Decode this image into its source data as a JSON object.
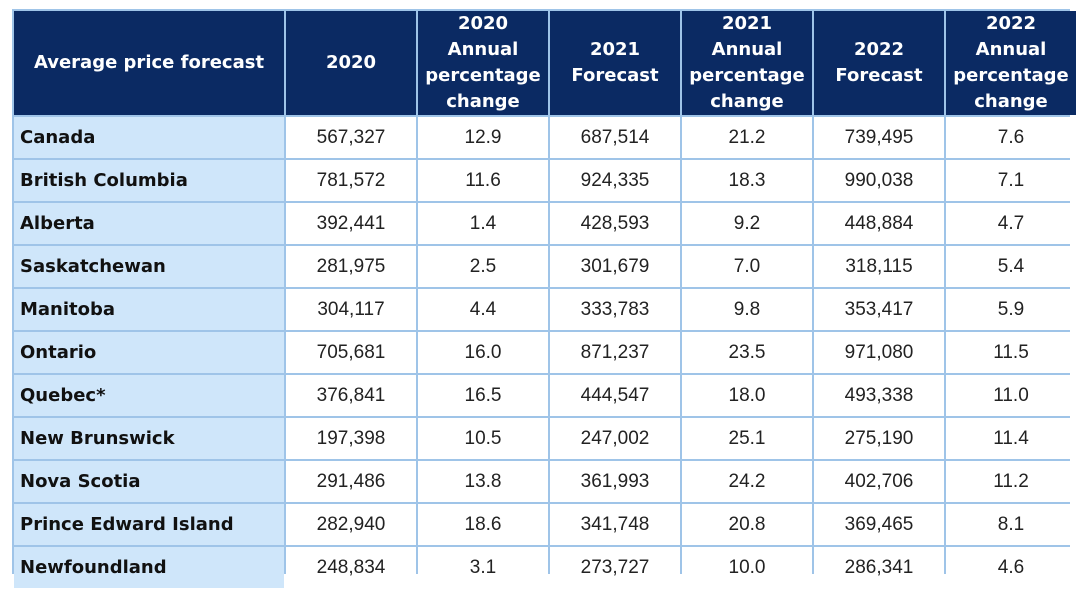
{
  "table": {
    "headers": [
      "Average price forecast",
      "2020",
      "2020 Annual\npercentage\nchange",
      "2021 Forecast",
      "2021 Annual\npercentage\nchange",
      "2022 Forecast",
      "2022 Annual\npercentage\nchange"
    ],
    "rows": [
      [
        "Canada",
        "567,327",
        "12.9",
        "687,514",
        "21.2",
        "739,495",
        "7.6"
      ],
      [
        "British Columbia",
        "781,572",
        "11.6",
        "924,335",
        "18.3",
        "990,038",
        "7.1"
      ],
      [
        "Alberta",
        "392,441",
        "1.4",
        "428,593",
        "9.2",
        "448,884",
        "4.7"
      ],
      [
        "Saskatchewan",
        "281,975",
        "2.5",
        "301,679",
        "7.0",
        "318,115",
        "5.4"
      ],
      [
        "Manitoba",
        "304,117",
        "4.4",
        "333,783",
        "9.8",
        "353,417",
        "5.9"
      ],
      [
        "Ontario",
        "705,681",
        "16.0",
        "871,237",
        "23.5",
        "971,080",
        "11.5"
      ],
      [
        "Quebec*",
        "376,841",
        "16.5",
        "444,547",
        "18.0",
        "493,338",
        "11.0"
      ],
      [
        "New Brunswick",
        "197,398",
        "10.5",
        "247,002",
        "25.1",
        "275,190",
        "11.4"
      ],
      [
        "Nova Scotia",
        "291,486",
        "13.8",
        "361,993",
        "24.2",
        "402,706",
        "11.2"
      ],
      [
        "Prince Edward Island",
        "282,940",
        "18.6",
        "341,748",
        "20.8",
        "369,465",
        "8.1"
      ],
      [
        "Newfoundland",
        "248,834",
        "3.1",
        "273,727",
        "10.0",
        "286,341",
        "4.6"
      ]
    ]
  },
  "colors": {
    "header_bg": "#0b2a63",
    "header_text": "#ffffff",
    "region_bg": "#cfe6fa",
    "grid": "#9fc4e8"
  }
}
